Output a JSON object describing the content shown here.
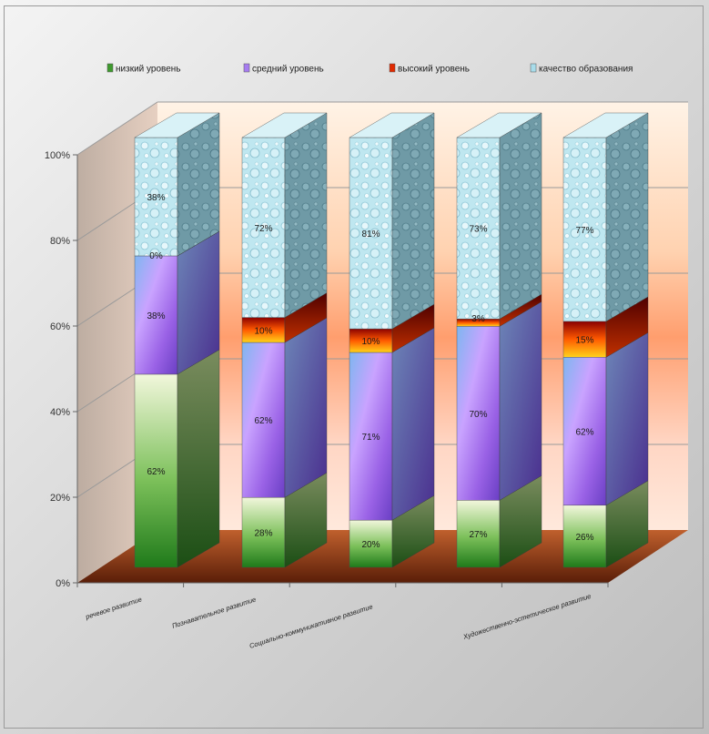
{
  "chart_data": {
    "type": "bar",
    "subtype": "stacked-3d",
    "categories": [
      "речевое развитие",
      "Познавательное развитие",
      "Социально-коммуникативное развитие",
      "",
      "Художественно-эстетическое развитие"
    ],
    "series": [
      {
        "name": "низкий уровень",
        "color": "#3f9a2e",
        "values": [
          62,
          28,
          20,
          27,
          26
        ]
      },
      {
        "name": "средний уровень",
        "color": "#a67cf0",
        "values": [
          38,
          62,
          71,
          70,
          62
        ]
      },
      {
        "name": "высокий уровень",
        "color": "#e02a00",
        "values": [
          0,
          10,
          10,
          3,
          15
        ]
      },
      {
        "name": "качество образования",
        "color": "#a8dcea",
        "values": [
          38,
          72,
          81,
          73,
          77
        ]
      }
    ],
    "data_labels": [
      [
        "62%",
        "28%",
        "20%",
        "27%",
        "26%"
      ],
      [
        "38%",
        "62%",
        "71%",
        "70%",
        "62%"
      ],
      [
        "0%",
        "10%",
        "10%",
        "3%",
        "15%"
      ],
      [
        "38%",
        "72%",
        "81%",
        "73%",
        "77%"
      ]
    ],
    "y_ticks": [
      "0%",
      "20%",
      "40%",
      "60%",
      "80%",
      "100%"
    ],
    "ylim": [
      0,
      100
    ],
    "grid": true,
    "legend_position": "top"
  }
}
